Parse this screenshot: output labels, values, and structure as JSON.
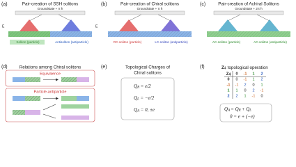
{
  "panel_a": {
    "label": "(a)",
    "title": "Pair-creation of SSH solitons",
    "groundstate": "Groundstate + π ħ",
    "field_left": "E",
    "field_right": "E",
    "particle": "Soliton (particle)",
    "antiparticle": "Antisoliton (antiparticle)"
  },
  "panel_b": {
    "label": "(b)",
    "title": "Pair-creation of Chiral solitons",
    "groundstate": "Groundstate + π ħ",
    "particle": "RC-soliton (particle)",
    "antiparticle": "LC-soliton (antiparticle)"
  },
  "panel_c": {
    "label": "(c)",
    "title": "Pair-creation of Achiral Solitons",
    "groundstate": "Groundstate + 2π ħ",
    "particle": "AC-soliton (particle)",
    "antiparticle": "AC-soliton (antiparticle)"
  },
  "panel_d": {
    "label": "(d)",
    "title": "Relations among Chiral solitons",
    "equivalence": "Equivalence",
    "particle_antiparticle": "Particle-antiparticle"
  },
  "panel_e": {
    "label": "(e)",
    "title_lines": [
      "Topological Charges of",
      "Chiral solitons"
    ],
    "equations": [
      {
        "symbol": "Q",
        "sub": "R",
        "rhs": "= e/2"
      },
      {
        "symbol": "Q",
        "sub": "L",
        "rhs": "= −e/2"
      },
      {
        "symbol": "Q",
        "sub": "A",
        "rhs": "= 0, ±e"
      }
    ]
  },
  "panel_f": {
    "label": "(f)",
    "title_symbol": "Z",
    "title_sub": "4",
    "title_rest": "topological operation",
    "table": {
      "corner_symbol": "Z",
      "corner_sub": "4",
      "header": [
        0,
        -1,
        1,
        2
      ],
      "rows": [
        [
          0,
          0,
          -1,
          1,
          2
        ],
        [
          -1,
          -1,
          2,
          0,
          1
        ],
        [
          1,
          1,
          0,
          2,
          -1
        ],
        [
          2,
          2,
          1,
          -1,
          0
        ]
      ]
    },
    "equations": [
      {
        "lhs": "Q",
        "lhs_sub": "A",
        "mid": "= Q",
        "mid_sub": "R",
        "plus": "+ Q",
        "plus_sub": "L"
      },
      {
        "text": "0 = e + (−e)"
      }
    ]
  }
}
